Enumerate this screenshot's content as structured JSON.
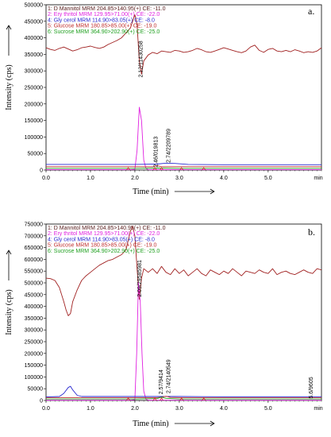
{
  "chart_data": [
    {
      "type": "line",
      "panel_label": "a.",
      "xlabel": "Time (min)",
      "ylabel": "Intensity (cps)",
      "x_unit_label": "min",
      "xlim": [
        0,
        6.2
      ],
      "ylim": [
        0,
        500000
      ],
      "x_ticks": [
        0.0,
        1.0,
        2.0,
        3.0,
        4.0,
        5.0
      ],
      "x_tick_labels": [
        "0.0",
        "1.0",
        "2.0",
        "3.0",
        "4.0",
        "5.0"
      ],
      "y_ticks": [
        0,
        50000,
        100000,
        150000,
        200000,
        250000,
        300000,
        350000,
        400000,
        450000,
        500000
      ],
      "y_tick_labels": [
        "0",
        "50000",
        "100000",
        "150000",
        "200000",
        "250000",
        "300000",
        "350000",
        "400000",
        "450000",
        "500000"
      ],
      "legend": [
        {
          "text": "1: D Mannitol MRM 204.85>140.95(+) CE: -11.0",
          "color": "#5a2020"
        },
        {
          "text": "2: Ery thritol MRM 129.95>71.00(+) CE: -22.0",
          "color": "#e020e0"
        },
        {
          "text": "4: Gly cerol MRM 114.90>83.05(+) CE: -8.0",
          "color": "#2a2ad0"
        },
        {
          "text": "5: Glucose MRM 180.85>85.00(+) CE: -19.0",
          "color": "#c03030"
        },
        {
          "text": "6: Sucrose MRM 364.90>202.90(+) CE: -25.0",
          "color": "#20a020"
        }
      ],
      "peak_labels": [
        {
          "text": "2.12/11430258",
          "x": 2.12,
          "y": 280000
        },
        {
          "text": "2.74/2209789",
          "x": 2.74,
          "y": 22000
        },
        {
          "text": "2.46/019813",
          "x": 2.46,
          "y": 8000
        }
      ],
      "series": [
        {
          "color": "#a02020",
          "x": [
            0.0,
            0.1,
            0.2,
            0.3,
            0.4,
            0.5,
            0.6,
            0.7,
            0.8,
            0.9,
            1.0,
            1.1,
            1.2,
            1.3,
            1.4,
            1.5,
            1.6,
            1.7,
            1.8,
            1.9,
            1.95,
            2.0,
            2.05,
            2.1,
            2.15,
            2.2,
            2.3,
            2.4,
            2.5,
            2.6,
            2.7,
            2.8,
            2.9,
            3.0,
            3.1,
            3.2,
            3.3,
            3.4,
            3.5,
            3.6,
            3.7,
            3.8,
            3.9,
            4.0,
            4.1,
            4.2,
            4.3,
            4.4,
            4.5,
            4.6,
            4.7,
            4.8,
            4.9,
            5.0,
            5.1,
            5.2,
            5.3,
            5.4,
            5.5,
            5.6,
            5.7,
            5.8,
            5.9,
            6.0,
            6.1,
            6.2
          ],
          "y": [
            370000,
            365000,
            362000,
            368000,
            372000,
            366000,
            360000,
            364000,
            370000,
            372000,
            375000,
            371000,
            368000,
            372000,
            380000,
            386000,
            392000,
            400000,
            415000,
            430000,
            450000,
            470000,
            440000,
            330000,
            290000,
            330000,
            348000,
            356000,
            352000,
            360000,
            358000,
            356000,
            362000,
            360000,
            356000,
            358000,
            362000,
            368000,
            364000,
            358000,
            356000,
            360000,
            365000,
            370000,
            366000,
            362000,
            358000,
            355000,
            360000,
            372000,
            378000,
            362000,
            356000,
            365000,
            368000,
            360000,
            358000,
            362000,
            358000,
            364000,
            360000,
            355000,
            358000,
            356000,
            360000,
            370000
          ]
        },
        {
          "color": "#e020e0",
          "x": [
            0.0,
            1.0,
            1.9,
            2.0,
            2.05,
            2.1,
            2.15,
            2.2,
            2.25,
            2.3,
            2.4,
            3.0,
            4.0,
            5.0,
            6.2
          ],
          "y": [
            1000,
            1000,
            1000,
            2000,
            60000,
            190000,
            150000,
            30000,
            5000,
            1000,
            1000,
            1000,
            1000,
            1000,
            1000
          ]
        },
        {
          "color": "#2a2ad0",
          "x": [
            0.0,
            1.0,
            2.0,
            2.5,
            2.7,
            2.9,
            3.2,
            4.0,
            5.0,
            6.2
          ],
          "y": [
            17000,
            17000,
            17000,
            18000,
            21000,
            20000,
            17000,
            16000,
            16000,
            16000
          ]
        },
        {
          "color": "#c03030",
          "x": [
            0.0,
            1.0,
            2.0,
            2.4,
            2.5,
            2.6,
            3.0,
            4.0,
            5.0,
            6.2
          ],
          "y": [
            10000,
            10000,
            10000,
            10000,
            13000,
            10000,
            10000,
            10000,
            10000,
            10000
          ]
        },
        {
          "color": "#20a020",
          "x": [
            0.0,
            1.0,
            2.0,
            2.5,
            3.0,
            4.0,
            5.0,
            6.2
          ],
          "y": [
            5000,
            5000,
            5000,
            6000,
            5000,
            5000,
            5000,
            5000
          ]
        }
      ]
    },
    {
      "type": "line",
      "panel_label": "b.",
      "xlabel": "Time (min)",
      "ylabel": "Intensity (cps)",
      "x_unit_label": "min",
      "xlim": [
        0,
        6.2
      ],
      "ylim": [
        0,
        750000
      ],
      "x_ticks": [
        0.0,
        1.0,
        2.0,
        3.0,
        4.0,
        5.0
      ],
      "x_tick_labels": [
        "0.0",
        "1.0",
        "2.0",
        "3.0",
        "4.0",
        "5.0"
      ],
      "y_ticks": [
        0,
        50000,
        100000,
        150000,
        200000,
        250000,
        300000,
        350000,
        400000,
        450000,
        500000,
        550000,
        600000,
        650000,
        700000,
        750000
      ],
      "y_tick_labels": [
        "0",
        "50000",
        "100000",
        "150000",
        "200000",
        "250000",
        "300000",
        "350000",
        "400000",
        "450000",
        "500000",
        "550000",
        "600000",
        "650000",
        "700000",
        "750000"
      ],
      "legend": [
        {
          "text": "1: D Mannitol MRM 204.85>140.95(+) CE: -11.0",
          "color": "#5a2020"
        },
        {
          "text": "2: Ery thritol MRM 129.95>71.00(+) CE: -22.0",
          "color": "#e020e0"
        },
        {
          "text": "4: Gly cerol MRM 114.90>83.05(+) CE: -8.0",
          "color": "#2a2ad0"
        },
        {
          "text": "5: Glucose MRM 180.85>85.00(+) CE: -19.0",
          "color": "#c03030"
        },
        {
          "text": "6: Sucrose MRM 364.90>202.90(+) CE: -25.0",
          "color": "#20a020"
        }
      ],
      "peak_labels": [
        {
          "text": "2.09/29585981",
          "x": 2.09,
          "y": 440000
        },
        {
          "text": "2.74/2140549",
          "x": 2.74,
          "y": 30000
        },
        {
          "text": "2.57/9414",
          "x": 2.57,
          "y": 26000
        },
        {
          "text": "5.6/9605",
          "x": 5.95,
          "y": 8000
        }
      ],
      "series": [
        {
          "color": "#a02020",
          "x": [
            0.0,
            0.1,
            0.2,
            0.3,
            0.4,
            0.45,
            0.5,
            0.55,
            0.6,
            0.7,
            0.8,
            0.9,
            1.0,
            1.1,
            1.2,
            1.3,
            1.4,
            1.5,
            1.6,
            1.7,
            1.8,
            1.85,
            1.9,
            1.95,
            2.0,
            2.05,
            2.1,
            2.15,
            2.2,
            2.3,
            2.4,
            2.5,
            2.6,
            2.7,
            2.8,
            2.9,
            3.0,
            3.1,
            3.2,
            3.3,
            3.4,
            3.5,
            3.6,
            3.7,
            3.8,
            3.9,
            4.0,
            4.1,
            4.2,
            4.3,
            4.4,
            4.5,
            4.6,
            4.7,
            4.8,
            4.9,
            5.0,
            5.1,
            5.2,
            5.3,
            5.4,
            5.5,
            5.6,
            5.7,
            5.8,
            5.9,
            6.0,
            6.1,
            6.2
          ],
          "y": [
            520000,
            518000,
            510000,
            480000,
            420000,
            385000,
            360000,
            370000,
            420000,
            470000,
            510000,
            530000,
            545000,
            560000,
            575000,
            585000,
            595000,
            600000,
            610000,
            620000,
            640000,
            680000,
            720000,
            740000,
            700000,
            560000,
            430000,
            520000,
            560000,
            545000,
            560000,
            540000,
            570000,
            545000,
            535000,
            560000,
            540000,
            555000,
            530000,
            545000,
            560000,
            540000,
            530000,
            555000,
            545000,
            535000,
            550000,
            540000,
            560000,
            545000,
            530000,
            550000,
            545000,
            540000,
            555000,
            545000,
            540000,
            560000,
            535000,
            545000,
            550000,
            540000,
            535000,
            545000,
            555000,
            545000,
            540000,
            560000,
            555000
          ]
        },
        {
          "color": "#e020e0",
          "x": [
            0.0,
            1.0,
            1.9,
            2.0,
            2.04,
            2.08,
            2.12,
            2.16,
            2.2,
            2.25,
            2.3,
            3.0,
            4.0,
            5.0,
            6.2
          ],
          "y": [
            1000,
            1000,
            1000,
            3000,
            200000,
            500000,
            420000,
            200000,
            40000,
            5000,
            1000,
            1000,
            1000,
            1000,
            1000
          ]
        },
        {
          "color": "#2a2ad0",
          "x": [
            0.0,
            0.3,
            0.4,
            0.5,
            0.55,
            0.6,
            0.7,
            0.8,
            1.0,
            2.0,
            3.0,
            4.0,
            5.0,
            6.2
          ],
          "y": [
            15000,
            17000,
            30000,
            55000,
            60000,
            45000,
            22000,
            17000,
            17000,
            17000,
            17000,
            16000,
            16000,
            16000
          ]
        },
        {
          "color": "#c03030",
          "x": [
            0.0,
            1.0,
            2.0,
            2.5,
            2.6,
            2.7,
            2.8,
            3.0,
            4.0,
            5.0,
            6.2
          ],
          "y": [
            12000,
            12000,
            12000,
            12000,
            14000,
            18000,
            13000,
            12000,
            12000,
            12000,
            12000
          ]
        },
        {
          "color": "#20a020",
          "x": [
            0.0,
            1.0,
            2.0,
            2.5,
            2.6,
            2.7,
            3.0,
            4.0,
            5.0,
            6.2
          ],
          "y": [
            6000,
            6000,
            6000,
            8000,
            14000,
            9000,
            6000,
            6000,
            6000,
            6000
          ]
        }
      ]
    }
  ]
}
